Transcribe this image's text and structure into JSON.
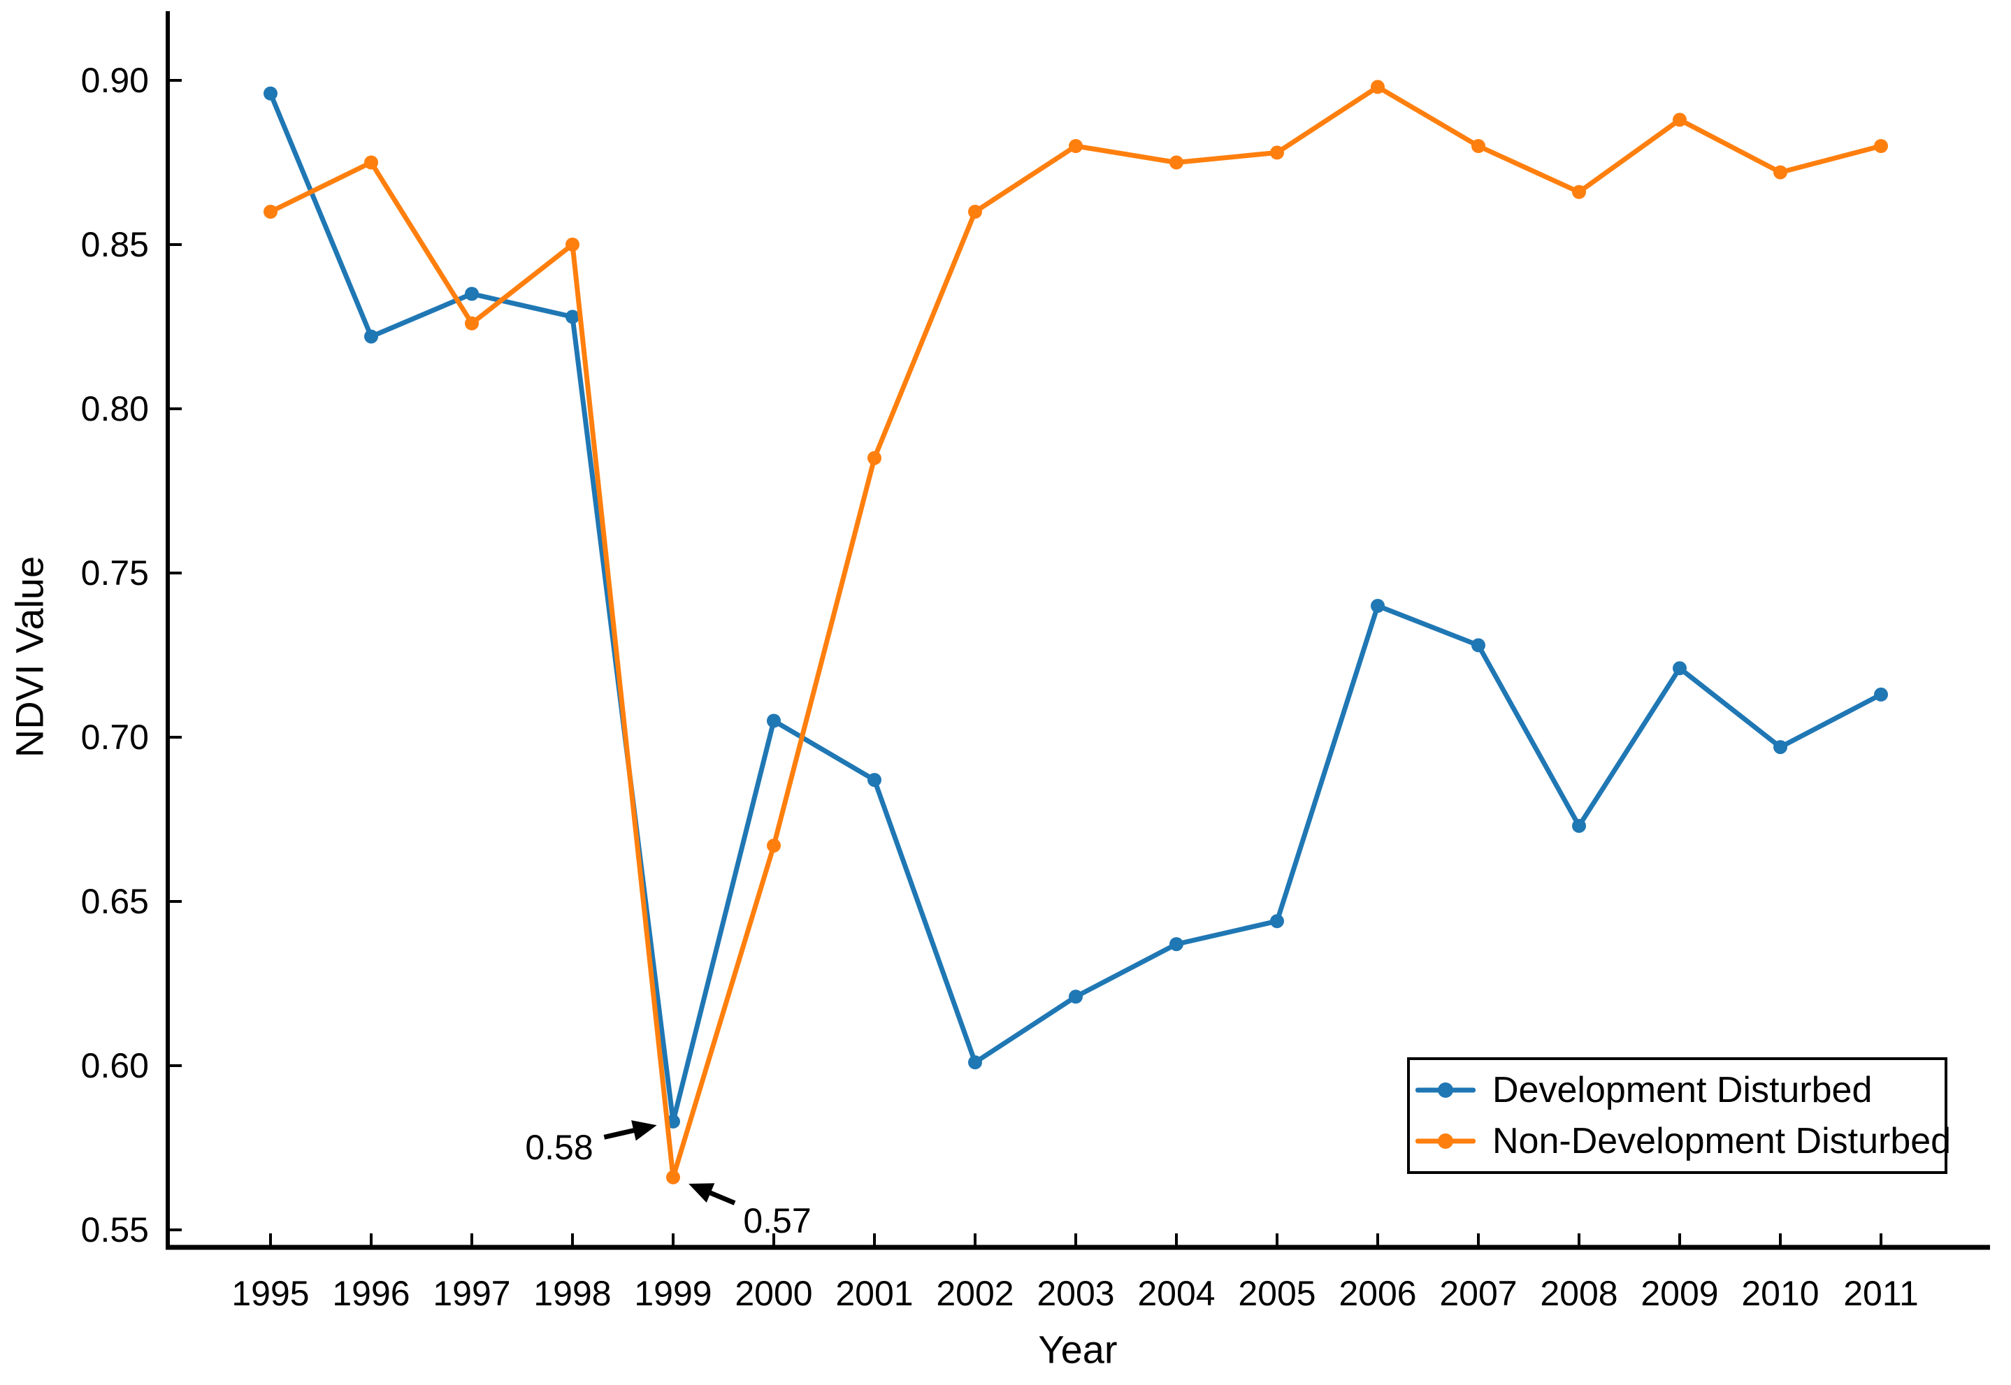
{
  "figure": {
    "background": "#ffffff",
    "text_color": "#000000",
    "axis_color": "#000000"
  },
  "chart_data": {
    "type": "line",
    "title": "",
    "xlabel": "Year",
    "ylabel": "NDVI Value",
    "x": [
      1995,
      1996,
      1997,
      1998,
      1999,
      2000,
      2001,
      2002,
      2003,
      2004,
      2005,
      2006,
      2007,
      2008,
      2009,
      2010,
      2011
    ],
    "x_tick_labels": [
      "1995",
      "1996",
      "1997",
      "1998",
      "1999",
      "2000",
      "2001",
      "2002",
      "2003",
      "2004",
      "2005",
      "2006",
      "2007",
      "2008",
      "2009",
      "2010",
      "2011"
    ],
    "yticks": [
      0.55,
      0.6,
      0.65,
      0.7,
      0.75,
      0.8,
      0.85,
      0.9
    ],
    "ytick_labels": [
      "0.55",
      "0.60",
      "0.65",
      "0.70",
      "0.75",
      "0.80",
      "0.85",
      "0.90"
    ],
    "ylim": [
      0.545,
      0.921
    ],
    "grid": false,
    "legend_position": "bottom-right",
    "series": [
      {
        "name": "Development Disturbed",
        "color": "#1f77b4",
        "marker": "circle",
        "values": [
          0.896,
          0.822,
          0.835,
          0.828,
          0.583,
          0.705,
          0.687,
          0.601,
          0.621,
          0.637,
          0.644,
          0.74,
          0.728,
          0.673,
          0.721,
          0.697,
          0.713
        ]
      },
      {
        "name": "Non-Development Disturbed",
        "color": "#ff7f0e",
        "marker": "circle",
        "values": [
          0.86,
          0.875,
          0.826,
          0.85,
          0.566,
          0.667,
          0.785,
          0.86,
          0.88,
          0.875,
          0.878,
          0.898,
          0.88,
          0.866,
          0.888,
          0.872,
          0.88
        ]
      }
    ],
    "annotations": [
      {
        "text": "0.58",
        "series_index": 0,
        "year": 1999,
        "value": 0.583
      },
      {
        "text": "0.57",
        "series_index": 1,
        "year": 1999,
        "value": 0.566
      }
    ]
  }
}
